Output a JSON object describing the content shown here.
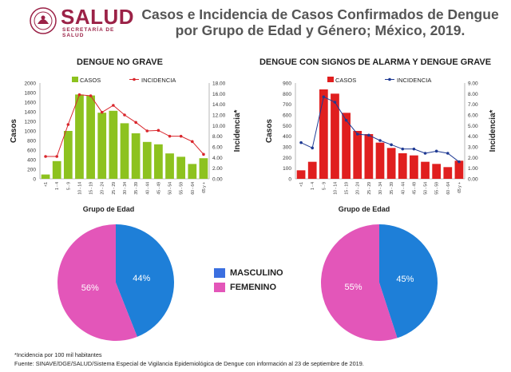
{
  "header": {
    "logo_text": "SALUD",
    "logo_sub": "SECRETARÍA DE SALUD",
    "title_line1": "Casos e Incidencia de Casos Confirmados de Dengue",
    "title_line2": "por Grupo de Edad y Género; México, 2019."
  },
  "gender_legend": {
    "male_label": "MASCULINO",
    "female_label": "FEMENINO",
    "male_color": "#1e7fd8",
    "female_color": "#e356b9"
  },
  "footer": {
    "note": "*Incidencia por 100 mil habitantes",
    "source": "Fuente: SINAVE/DGE/SALUD/Sistema Especial de Vigilancia Epidemiológica de Dengue con información al 23 de septiembre de 2019."
  },
  "chart_data": [
    {
      "type": "bar",
      "title": "DENGUE NO GRAVE",
      "xlabel": "Grupo de Edad",
      "ylabel": "Casos",
      "y2label": "Incidencia*",
      "ylim": [
        0,
        2000
      ],
      "y2lim": [
        0,
        18
      ],
      "yticks": [
        "0",
        "200",
        "400",
        "600",
        "800",
        "1000",
        "1200",
        "1400",
        "1600",
        "1800",
        "2000"
      ],
      "y2ticks": [
        "0.00",
        "2.00",
        "4.00",
        "6.00",
        "8.00",
        "10.00",
        "12.00",
        "14.00",
        "16.00",
        "18.00"
      ],
      "categories": [
        "<1",
        "1 - 4",
        "5 - 9",
        "10 - 14",
        "15 - 19",
        "20 - 24",
        "25 - 29",
        "30 - 34",
        "35 - 39",
        "40 - 44",
        "45 - 49",
        "50 - 54",
        "55 - 59",
        "60 - 64",
        "65 y +"
      ],
      "series": [
        {
          "name": "CASOS",
          "kind": "bar",
          "color": "#8dc21f",
          "values": [
            90,
            370,
            1000,
            1760,
            1740,
            1380,
            1420,
            1160,
            950,
            770,
            720,
            530,
            460,
            310,
            430
          ]
        },
        {
          "name": "INCIDENCIA",
          "kind": "line",
          "color": "#d9262c",
          "values": [
            4.2,
            4.2,
            10.2,
            15.8,
            15.6,
            12.5,
            13.8,
            12.0,
            10.6,
            9.0,
            9.1,
            8.0,
            8.0,
            7.0,
            4.6
          ]
        }
      ],
      "colors": {
        "bar": "#8dc21f",
        "line": "#d9262c"
      }
    },
    {
      "type": "bar",
      "title": "DENGUE CON SIGNOS DE ALARMA Y DENGUE GRAVE",
      "xlabel": "Grupo de Edad",
      "ylabel": "Casos",
      "y2label": "Incidencia*",
      "ylim": [
        0,
        900
      ],
      "y2lim": [
        0,
        9
      ],
      "yticks": [
        "0",
        "100",
        "200",
        "300",
        "400",
        "500",
        "600",
        "700",
        "800",
        "900"
      ],
      "y2ticks": [
        "0.00",
        "1.00",
        "2.00",
        "3.00",
        "4.00",
        "5.00",
        "6.00",
        "7.00",
        "8.00",
        "9.00"
      ],
      "categories": [
        "<1",
        "1 - 4",
        "5 - 9",
        "10 - 14",
        "15 - 19",
        "20 - 24",
        "25 - 29",
        "30 - 34",
        "35 - 39",
        "40 - 44",
        "45 - 49",
        "50 - 54",
        "55 - 59",
        "60 - 64",
        "65 y +"
      ],
      "series": [
        {
          "name": "CASOS",
          "kind": "bar",
          "color": "#e01f1f",
          "values": [
            80,
            160,
            840,
            800,
            620,
            450,
            420,
            340,
            290,
            240,
            220,
            160,
            140,
            110,
            170
          ]
        },
        {
          "name": "INCIDENCIA",
          "kind": "line",
          "color": "#1f3a93",
          "values": [
            3.4,
            2.9,
            7.7,
            7.2,
            5.5,
            4.2,
            4.1,
            3.6,
            3.2,
            2.8,
            2.8,
            2.4,
            2.6,
            2.4,
            1.6
          ]
        }
      ],
      "colors": {
        "bar": "#e01f1f",
        "line": "#1f3a93"
      }
    },
    {
      "type": "pie",
      "labels": [
        "44%",
        "56%"
      ],
      "values": [
        44,
        56
      ],
      "colors": [
        "#1e7fd8",
        "#e356b9"
      ]
    },
    {
      "type": "pie",
      "labels": [
        "45%",
        "55%"
      ],
      "values": [
        45,
        55
      ],
      "colors": [
        "#1e7fd8",
        "#e356b9"
      ]
    }
  ]
}
